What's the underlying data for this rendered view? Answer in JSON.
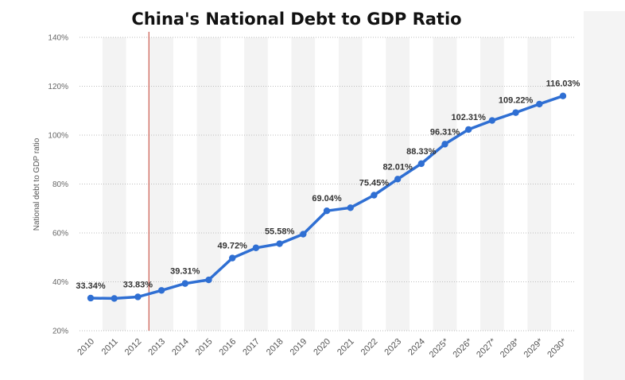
{
  "chart_data": {
    "type": "line",
    "title": "China's National Debt to GDP Ratio",
    "xlabel": "",
    "ylabel": "National debt to GDP ratio",
    "ylim": [
      20,
      140
    ],
    "y_ticks": [
      "20%",
      "40%",
      "60%",
      "80%",
      "100%",
      "120%",
      "140%"
    ],
    "categories": [
      "2010",
      "2011",
      "2012",
      "2013",
      "2014",
      "2015",
      "2016",
      "2017",
      "2018",
      "2019",
      "2020",
      "2021",
      "2022",
      "2023",
      "2024",
      "2025*",
      "2026*",
      "2027*",
      "2028*",
      "2029*",
      "2030*"
    ],
    "series": [
      {
        "name": "National debt to GDP ratio",
        "color": "#2f6fd3",
        "values": [
          33.34,
          33.2,
          33.83,
          36.5,
          39.31,
          40.8,
          49.72,
          53.9,
          55.58,
          59.5,
          69.04,
          70.3,
          75.45,
          82.01,
          88.33,
          96.31,
          102.31,
          106.0,
          109.22,
          112.7,
          116.03
        ],
        "labels": {
          "0": "33.34%",
          "2": "33.83%",
          "4": "39.31%",
          "6": "49.72%",
          "8": "55.58%",
          "10": "69.04%",
          "12": "75.45%",
          "13": "82.01%",
          "14": "88.33%",
          "15": "96.31%",
          "16": "102.31%",
          "18": "109.22%",
          "20": "116.03%"
        }
      }
    ],
    "reference_line": {
      "after_category": "2012",
      "color": "#c0392b"
    },
    "grid": true
  }
}
